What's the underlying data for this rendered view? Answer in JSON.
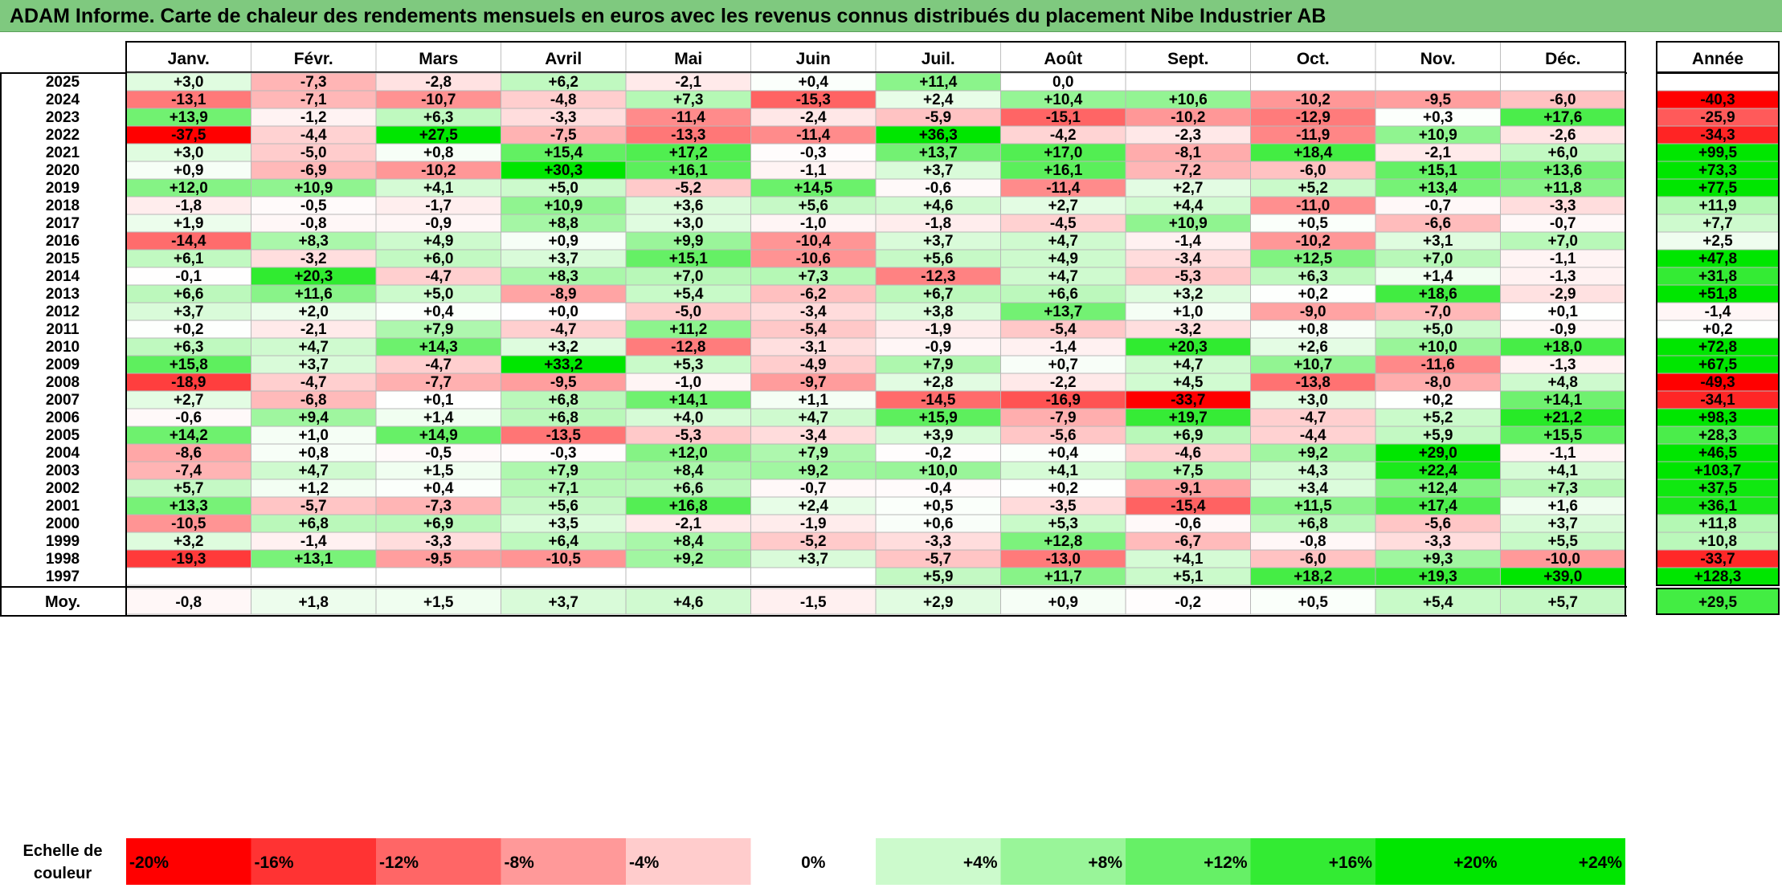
{
  "title": "ADAM Informe. Carte de chaleur des rendements mensuels en euros avec les revenus connus distribués du placement Nibe Industrier AB",
  "chart_data": {
    "type": "heatmap",
    "title": "ADAM Informe. Carte de chaleur des rendements mensuels en euros avec les revenus connus distribués du placement Nibe Industrier AB",
    "columns": [
      "Janv.",
      "Févr.",
      "Mars",
      "Avril",
      "Mai",
      "Juin",
      "Juil.",
      "Août",
      "Sept.",
      "Oct.",
      "Nov.",
      "Déc."
    ],
    "year_header": "Année",
    "rows": [
      {
        "year": "2025",
        "months": [
          "+3,0",
          "-7,3",
          "-2,8",
          "+6,2",
          "-2,1",
          "+0,4",
          "+11,4",
          "0,0",
          "",
          "",
          "",
          ""
        ],
        "annual": ""
      },
      {
        "year": "2024",
        "months": [
          "-13,1",
          "-7,1",
          "-10,7",
          "-4,8",
          "+7,3",
          "-15,3",
          "+2,4",
          "+10,4",
          "+10,6",
          "-10,2",
          "-9,5",
          "-6,0"
        ],
        "annual": "-40,3"
      },
      {
        "year": "2023",
        "months": [
          "+13,9",
          "-1,2",
          "+6,3",
          "-3,3",
          "-11,4",
          "-2,4",
          "-5,9",
          "-15,1",
          "-10,2",
          "-12,9",
          "+0,3",
          "+17,6"
        ],
        "annual": "-25,9"
      },
      {
        "year": "2022",
        "months": [
          "-37,5",
          "-4,4",
          "+27,5",
          "-7,5",
          "-13,3",
          "-11,4",
          "+36,3",
          "-4,2",
          "-2,3",
          "-11,9",
          "+10,9",
          "-2,6"
        ],
        "annual": "-34,3"
      },
      {
        "year": "2021",
        "months": [
          "+3,0",
          "-5,0",
          "+0,8",
          "+15,4",
          "+17,2",
          "-0,3",
          "+13,7",
          "+17,0",
          "-8,1",
          "+18,4",
          "-2,1",
          "+6,0"
        ],
        "annual": "+99,5"
      },
      {
        "year": "2020",
        "months": [
          "+0,9",
          "-6,9",
          "-10,2",
          "+30,3",
          "+16,1",
          "-1,1",
          "+3,7",
          "+16,1",
          "-7,2",
          "-6,0",
          "+15,1",
          "+13,6"
        ],
        "annual": "+73,3"
      },
      {
        "year": "2019",
        "months": [
          "+12,0",
          "+10,9",
          "+4,1",
          "+5,0",
          "-5,2",
          "+14,5",
          "-0,6",
          "-11,4",
          "+2,7",
          "+5,2",
          "+13,4",
          "+11,8"
        ],
        "annual": "+77,5"
      },
      {
        "year": "2018",
        "months": [
          "-1,8",
          "-0,5",
          "-1,7",
          "+10,9",
          "+3,6",
          "+5,6",
          "+4,6",
          "+2,7",
          "+4,4",
          "-11,0",
          "-0,7",
          "-3,3"
        ],
        "annual": "+11,9"
      },
      {
        "year": "2017",
        "months": [
          "+1,9",
          "-0,8",
          "-0,9",
          "+8,8",
          "+3,0",
          "-1,0",
          "-1,8",
          "-4,5",
          "+10,9",
          "+0,5",
          "-6,6",
          "-0,7"
        ],
        "annual": "+7,7"
      },
      {
        "year": "2016",
        "months": [
          "-14,4",
          "+8,3",
          "+4,9",
          "+0,9",
          "+9,9",
          "-10,4",
          "+3,7",
          "+4,7",
          "-1,4",
          "-10,2",
          "+3,1",
          "+7,0"
        ],
        "annual": "+2,5"
      },
      {
        "year": "2015",
        "months": [
          "+6,1",
          "-3,2",
          "+6,0",
          "+3,7",
          "+15,1",
          "-10,6",
          "+5,6",
          "+4,9",
          "-3,4",
          "+12,5",
          "+7,0",
          "-1,1"
        ],
        "annual": "+47,8"
      },
      {
        "year": "2014",
        "months": [
          "-0,1",
          "+20,3",
          "-4,7",
          "+8,3",
          "+7,0",
          "+7,3",
          "-12,3",
          "+4,7",
          "-5,3",
          "+6,3",
          "+1,4",
          "-1,3"
        ],
        "annual": "+31,8"
      },
      {
        "year": "2013",
        "months": [
          "+6,6",
          "+11,6",
          "+5,0",
          "-8,9",
          "+5,4",
          "-6,2",
          "+6,7",
          "+6,6",
          "+3,2",
          "+0,2",
          "+18,6",
          "-2,9"
        ],
        "annual": "+51,8"
      },
      {
        "year": "2012",
        "months": [
          "+3,7",
          "+2,0",
          "+0,4",
          "+0,0",
          "-5,0",
          "-3,4",
          "+3,8",
          "+13,7",
          "+1,0",
          "-9,0",
          "-7,0",
          "+0,1"
        ],
        "annual": "-1,4"
      },
      {
        "year": "2011",
        "months": [
          "+0,2",
          "-2,1",
          "+7,9",
          "-4,7",
          "+11,2",
          "-5,4",
          "-1,9",
          "-5,4",
          "-3,2",
          "+0,8",
          "+5,0",
          "-0,9"
        ],
        "annual": "+0,2"
      },
      {
        "year": "2010",
        "months": [
          "+6,3",
          "+4,7",
          "+14,3",
          "+3,2",
          "-12,8",
          "-3,1",
          "-0,9",
          "-1,4",
          "+20,3",
          "+2,6",
          "+10,0",
          "+18,0"
        ],
        "annual": "+72,8"
      },
      {
        "year": "2009",
        "months": [
          "+15,8",
          "+3,7",
          "-4,7",
          "+33,2",
          "+5,3",
          "-4,9",
          "+7,9",
          "+0,7",
          "+4,7",
          "+10,7",
          "-11,6",
          "-1,3"
        ],
        "annual": "+67,5"
      },
      {
        "year": "2008",
        "months": [
          "-18,9",
          "-4,7",
          "-7,7",
          "-9,5",
          "-1,0",
          "-9,7",
          "+2,8",
          "-2,2",
          "+4,5",
          "-13,8",
          "-8,0",
          "+4,8"
        ],
        "annual": "-49,3"
      },
      {
        "year": "2007",
        "months": [
          "+2,7",
          "-6,8",
          "+0,1",
          "+6,8",
          "+14,1",
          "+1,1",
          "-14,5",
          "-16,9",
          "-33,7",
          "+3,0",
          "+0,2",
          "+14,1"
        ],
        "annual": "-34,1"
      },
      {
        "year": "2006",
        "months": [
          "-0,6",
          "+9,4",
          "+1,4",
          "+6,8",
          "+4,0",
          "+4,7",
          "+15,9",
          "-7,9",
          "+19,7",
          "-4,7",
          "+5,2",
          "+21,2"
        ],
        "annual": "+98,3"
      },
      {
        "year": "2005",
        "months": [
          "+14,2",
          "+1,0",
          "+14,9",
          "-13,5",
          "-5,3",
          "-3,4",
          "+3,9",
          "-5,6",
          "+6,9",
          "-4,4",
          "+5,9",
          "+15,5"
        ],
        "annual": "+28,3"
      },
      {
        "year": "2004",
        "months": [
          "-8,6",
          "+0,8",
          "-0,5",
          "-0,3",
          "+12,0",
          "+7,9",
          "-0,2",
          "+0,4",
          "-4,6",
          "+9,2",
          "+29,0",
          "-1,1"
        ],
        "annual": "+46,5"
      },
      {
        "year": "2003",
        "months": [
          "-7,4",
          "+4,7",
          "+1,5",
          "+7,9",
          "+8,4",
          "+9,2",
          "+10,0",
          "+4,1",
          "+7,5",
          "+4,3",
          "+22,4",
          "+4,1"
        ],
        "annual": "+103,7"
      },
      {
        "year": "2002",
        "months": [
          "+5,7",
          "+1,2",
          "+0,4",
          "+7,1",
          "+6,6",
          "-0,7",
          "-0,4",
          "+0,2",
          "-9,1",
          "+3,4",
          "+12,4",
          "+7,3"
        ],
        "annual": "+37,5"
      },
      {
        "year": "2001",
        "months": [
          "+13,3",
          "-5,7",
          "-7,3",
          "+5,6",
          "+16,8",
          "+2,4",
          "+0,5",
          "-3,5",
          "-15,4",
          "+11,5",
          "+17,4",
          "+1,6"
        ],
        "annual": "+36,1"
      },
      {
        "year": "2000",
        "months": [
          "-10,5",
          "+6,8",
          "+6,9",
          "+3,5",
          "-2,1",
          "-1,9",
          "+0,6",
          "+5,3",
          "-0,6",
          "+6,8",
          "-5,6",
          "+3,7"
        ],
        "annual": "+11,8"
      },
      {
        "year": "1999",
        "months": [
          "+3,2",
          "-1,4",
          "-3,3",
          "+6,4",
          "+8,4",
          "-5,2",
          "-3,3",
          "+12,8",
          "-6,7",
          "-0,8",
          "-3,3",
          "+5,5"
        ],
        "annual": "+10,8"
      },
      {
        "year": "1998",
        "months": [
          "-19,3",
          "+13,1",
          "-9,5",
          "-10,5",
          "+9,2",
          "+3,7",
          "-5,7",
          "-13,0",
          "+4,1",
          "-6,0",
          "+9,3",
          "-10,0"
        ],
        "annual": "-33,7"
      },
      {
        "year": "1997",
        "months": [
          "",
          "",
          "",
          "",
          "",
          "",
          "+5,9",
          "+11,7",
          "+5,1",
          "+18,2",
          "+19,3",
          "+39,0"
        ],
        "annual": "+128,3"
      }
    ],
    "average_row": {
      "label": "Moy.",
      "months": [
        "-0,8",
        "+1,8",
        "+1,5",
        "+3,7",
        "+4,6",
        "-1,5",
        "+2,9",
        "+0,9",
        "-0,2",
        "+0,5",
        "+5,4",
        "+5,7"
      ],
      "annual": "+29,5"
    },
    "scale": {
      "label_line1": "Echelle de",
      "label_line2": "couleur",
      "items": [
        "-20%",
        "-16%",
        "-12%",
        "-8%",
        "-4%",
        "0%",
        "+4%",
        "+8%",
        "+12%",
        "+16%",
        "+20%",
        "+24%"
      ],
      "values": [
        -20,
        -16,
        -12,
        -8,
        -4,
        0,
        4,
        8,
        12,
        16,
        20,
        24
      ]
    },
    "colors": {
      "negative": "#ff0000",
      "positive": "#00e600",
      "neutral": "#ffffff",
      "title_bar": "#7fc97f"
    }
  }
}
